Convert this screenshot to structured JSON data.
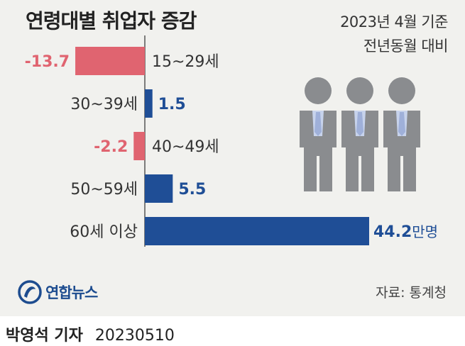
{
  "header": {
    "title": "연령대별 취업자 증감",
    "period_line1": "2023년 4월 기준",
    "period_line2": "전년동월 대비"
  },
  "chart_data": {
    "type": "bar",
    "orientation": "horizontal",
    "title": "연령대별 취업자 증감",
    "categories": [
      "15~29세",
      "30~39세",
      "40~49세",
      "50~59세",
      "60세 이상"
    ],
    "values": [
      -13.7,
      1.5,
      -2.2,
      5.5,
      44.2
    ],
    "value_labels": [
      "-13.7",
      "1.5",
      "-2.2",
      "5.5",
      "44.2"
    ],
    "unit": "만명",
    "colors": {
      "negative": "#e06470",
      "positive": "#1f4e96"
    }
  },
  "logo": {
    "text": "연합뉴스",
    "icon": "yonhap-swirl-icon"
  },
  "source": "자료: 통계청",
  "byline": {
    "name": "박영석 기자",
    "date": "20230510"
  },
  "illustration": {
    "icon": "three-businessmen-icon",
    "colors": {
      "body": "#8a8c8f",
      "shirt": "#c7d3ec",
      "tie": "#a9b8dd"
    }
  }
}
